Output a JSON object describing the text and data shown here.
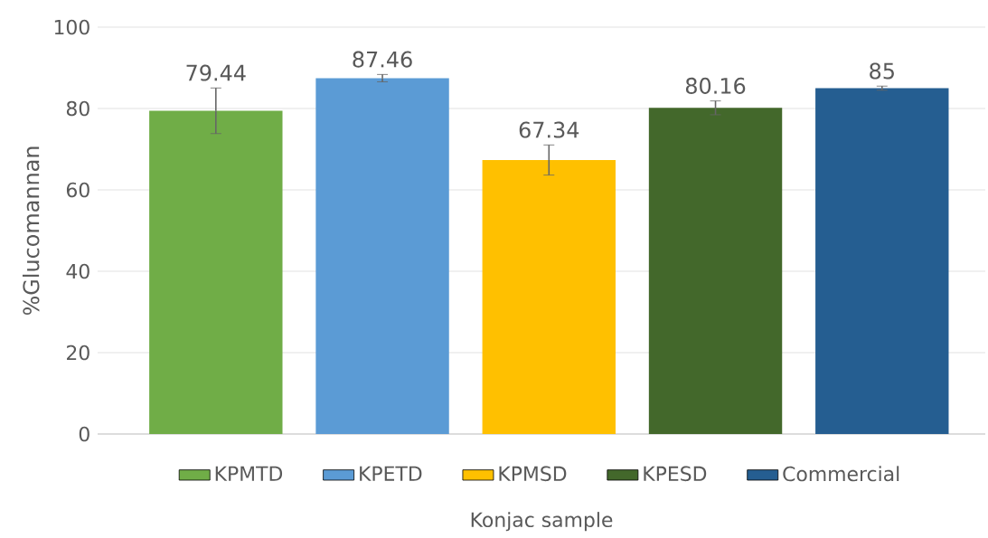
{
  "chart_data": {
    "type": "bar",
    "xlabel": "Konjac sample",
    "ylabel": "%Glucomannan",
    "categories": [
      null,
      null,
      null,
      null,
      null
    ],
    "series": [
      {
        "name": "KPMTD",
        "color": "#70ad47",
        "values": [
          79.44,
          null,
          null,
          null,
          null
        ],
        "errors": [
          5.6,
          null,
          null,
          null,
          null
        ]
      },
      {
        "name": "KPETD",
        "color": "#5b9bd5",
        "values": [
          null,
          87.46,
          null,
          null,
          null
        ],
        "errors": [
          null,
          0.9,
          null,
          null,
          null
        ]
      },
      {
        "name": "KPMSD",
        "color": "#ffc000",
        "values": [
          null,
          null,
          67.34,
          null,
          null
        ],
        "errors": [
          null,
          null,
          3.7,
          null,
          null
        ]
      },
      {
        "name": "KPESD",
        "color": "#43682b",
        "values": [
          null,
          null,
          null,
          80.16,
          null
        ],
        "errors": [
          null,
          null,
          null,
          1.7,
          null
        ]
      },
      {
        "name": "Commercial",
        "color": "#255e91",
        "values": [
          null,
          null,
          null,
          null,
          85
        ],
        "errors": [
          null,
          null,
          null,
          null,
          0.5
        ]
      }
    ],
    "ylim": [
      0,
      100
    ],
    "yticks": [
      0,
      20,
      40,
      60,
      80,
      100
    ],
    "grid": "y",
    "legend": "bottom",
    "data_labels": true
  }
}
